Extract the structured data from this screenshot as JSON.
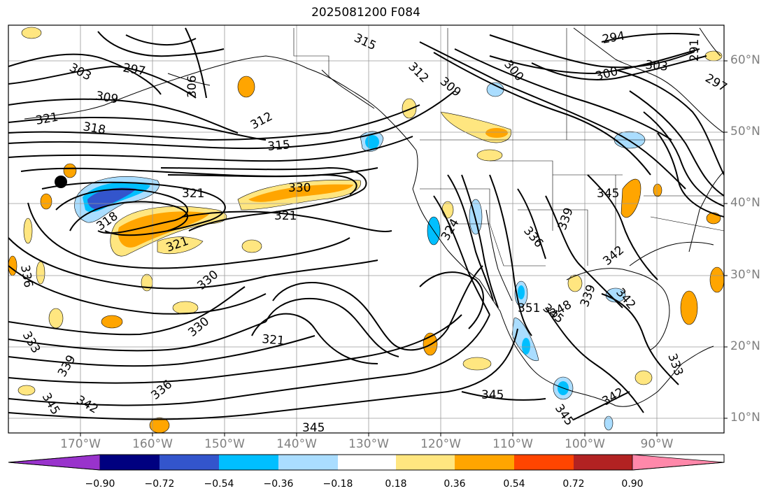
{
  "title": "2025081200 F084",
  "map": {
    "lat_labels": [
      "60°N",
      "50°N",
      "40°N",
      "30°N",
      "20°N",
      "10°N"
    ],
    "lon_labels": [
      "170°W",
      "160°W",
      "150°W",
      "140°W",
      "130°W",
      "120°W",
      "110°W",
      "100°W",
      "90°W"
    ],
    "contour_labels": [
      "303",
      "297",
      "309",
      "306",
      "315",
      "312",
      "309",
      "300",
      "294",
      "303",
      "300",
      "297",
      "291",
      "321",
      "318",
      "312",
      "315",
      "330",
      "321",
      "321",
      "318",
      "321",
      "330",
      "330",
      "321",
      "336",
      "339",
      "333",
      "345",
      "342",
      "336",
      "345",
      "345",
      "345",
      "342",
      "345",
      "351",
      "345",
      "348",
      "336",
      "339",
      "342",
      "339",
      "342",
      "333",
      "324"
    ]
  },
  "colorbar": {
    "ticks": [
      "−0.90",
      "−0.72",
      "−0.54",
      "−0.36",
      "−0.18",
      "0.18",
      "0.36",
      "0.54",
      "0.72",
      "0.90"
    ],
    "colors": [
      "#9933cc",
      "#000080",
      "#3355cc",
      "#00bfff",
      "#aaddff",
      "#ffffff",
      "#ffe680",
      "#ffa500",
      "#ff4500",
      "#b22222",
      "#ff88aa"
    ]
  }
}
